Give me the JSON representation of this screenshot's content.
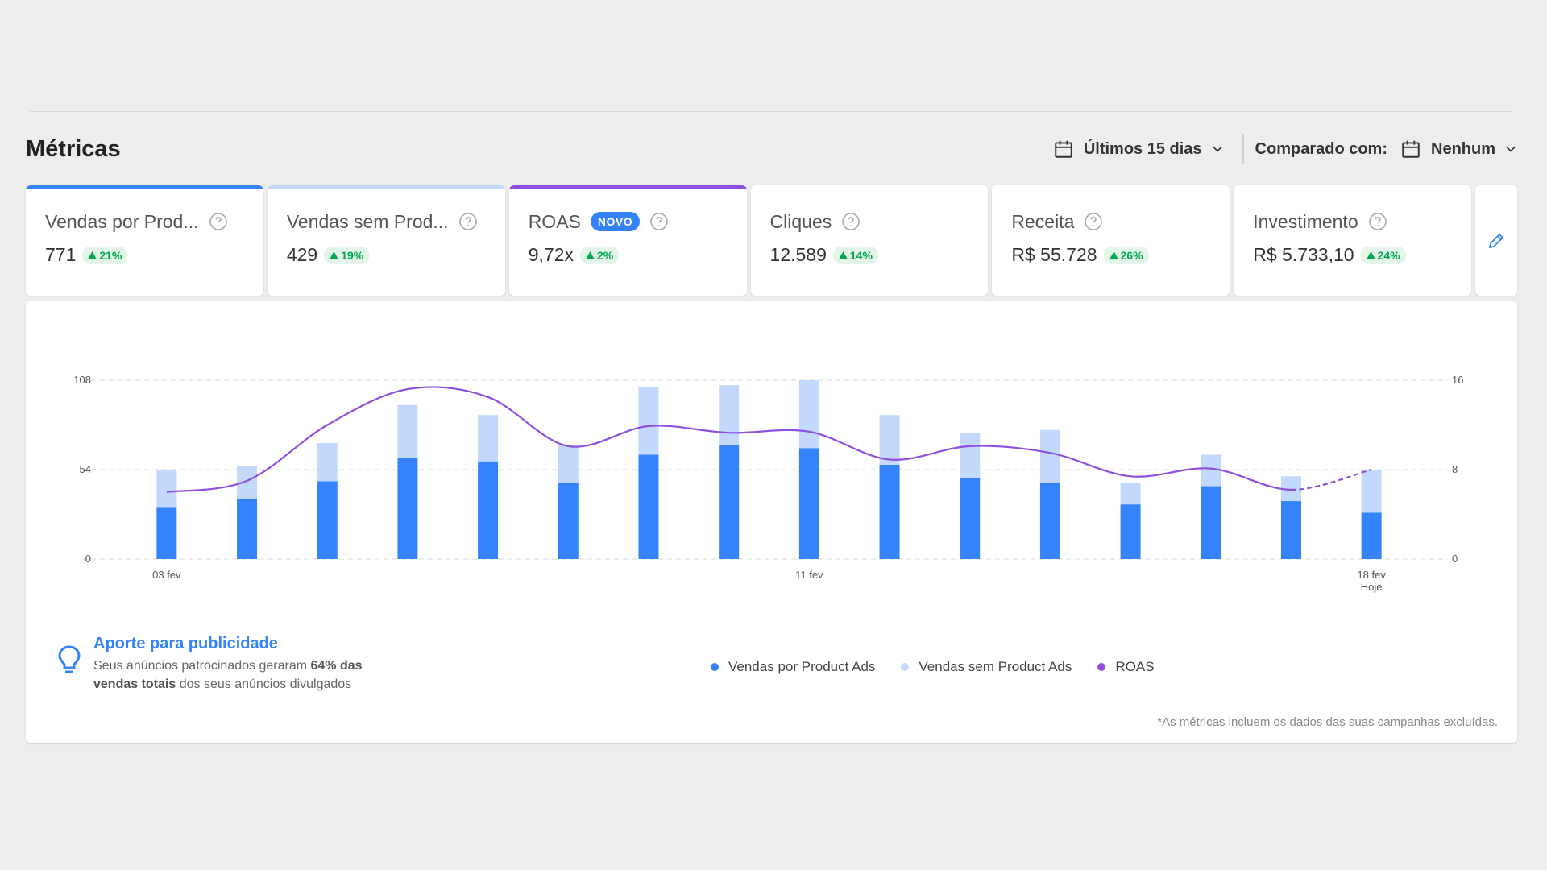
{
  "header": {
    "title": "Métricas",
    "date_filter": "Últimos 15 dias",
    "compare_label": "Comparado com:",
    "compare_value": "Nenhum"
  },
  "cards": [
    {
      "title": "Vendas por Prod...",
      "value": "771",
      "delta": "21%",
      "topbar_color": "#3483fa",
      "badge": ""
    },
    {
      "title": "Vendas sem Prod...",
      "value": "429",
      "delta": "19%",
      "topbar_color": "#c2d9fd",
      "badge": ""
    },
    {
      "title": "ROAS",
      "value": "9,72x",
      "delta": "2%",
      "topbar_color": "#8e4fe0",
      "badge": "NOVO"
    },
    {
      "title": "Cliques",
      "value": "12.589",
      "delta": "14%",
      "topbar_color": "",
      "badge": ""
    },
    {
      "title": "Receita",
      "value": "R$ 55.728",
      "delta": "26%",
      "topbar_color": "",
      "badge": ""
    },
    {
      "title": "Investimento",
      "value": "R$ 5.733,10",
      "delta": "24%",
      "topbar_color": "",
      "badge": ""
    }
  ],
  "colors": {
    "accent": "#3483fa",
    "bar_product_ads": "#3483fa",
    "bar_sem_product_ads": "#c2d9fd",
    "roas_line": "#8e4fe0",
    "delta_green": "#00a650"
  },
  "chart_data": {
    "type": "bar",
    "stacked": true,
    "categories": [
      "03 fev",
      "04 fev",
      "05 fev",
      "06 fev",
      "07 fev",
      "08 fev",
      "09 fev",
      "10 fev",
      "11 fev",
      "12 fev",
      "13 fev",
      "14 fev",
      "15 fev",
      "16 fev",
      "17 fev",
      "18 fev"
    ],
    "x_tick_labels": [
      "03 fev",
      "11 fev",
      "18 fev"
    ],
    "x_tick_sublabel": "Hoje",
    "series": [
      {
        "name": "Vendas por Product Ads",
        "type": "bar",
        "axis": "left",
        "values": [
          31,
          36,
          47,
          61,
          59,
          46,
          63,
          69,
          67,
          57,
          49,
          46,
          33,
          44,
          35,
          28
        ]
      },
      {
        "name": "Vendas sem Product Ads",
        "type": "bar",
        "axis": "left",
        "values": [
          23,
          20,
          23,
          32,
          28,
          23,
          41,
          36,
          41,
          30,
          27,
          32,
          13,
          19,
          15,
          26
        ]
      },
      {
        "name": "ROAS",
        "type": "line",
        "axis": "right",
        "values": [
          6.0,
          7.0,
          12.0,
          15.2,
          14.5,
          10.1,
          11.9,
          11.3,
          11.4,
          8.9,
          10.1,
          9.5,
          7.4,
          8.1,
          6.2,
          8.0
        ],
        "last_segment_dashed": true
      }
    ],
    "ylim_left": [
      0,
      108
    ],
    "yticks_left": [
      0,
      54,
      108
    ],
    "ylim_right": [
      0,
      16
    ],
    "yticks_right": [
      0,
      8,
      16
    ],
    "grid": true,
    "legend_position": "bottom-center"
  },
  "insight": {
    "title": "Aporte para publicidade",
    "text_before": "Seus anúncios patrocinados geraram",
    "text_bold": "64% das vendas totais",
    "text_after": "dos seus anúncios divulgados"
  },
  "legend": [
    {
      "label": "Vendas por Product Ads",
      "color": "#3483fa"
    },
    {
      "label": "Vendas sem Product Ads",
      "color": "#c2d9fd"
    },
    {
      "label": "ROAS",
      "color": "#8e4fe0"
    }
  ],
  "footnote": "*As métricas incluem os dados das suas campanhas excluídas.",
  "icons": {
    "calendar": "calendar-icon",
    "chevron": "chevron-down-icon",
    "help": "help-circle-icon",
    "edit": "pencil-icon",
    "insight": "lightbulb-icon"
  }
}
